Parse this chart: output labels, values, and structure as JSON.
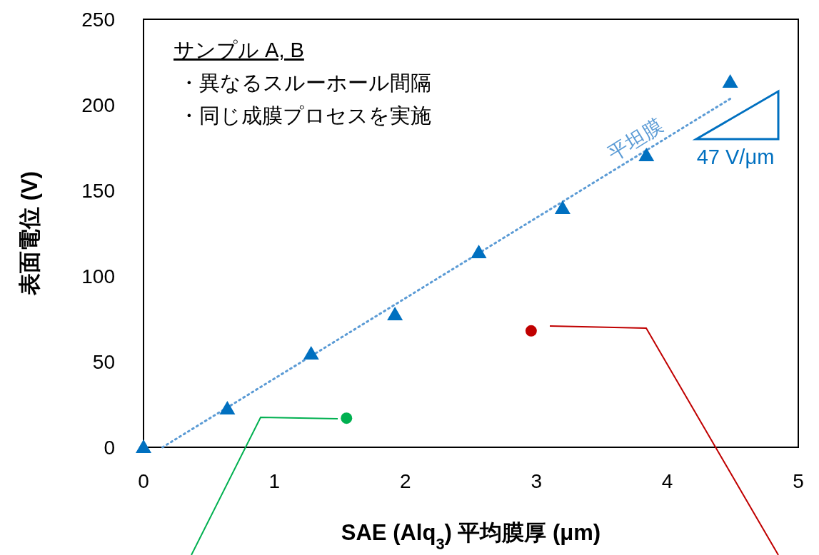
{
  "chart_data": {
    "type": "scatter",
    "xlabel": "SAE (Alq$_{3}$) 平均膜厚 (μm)",
    "ylabel": "表面電位 (V)",
    "xlim": [
      0,
      5
    ],
    "xticks": [
      0,
      1,
      2,
      3,
      4,
      5
    ],
    "ylim": [
      0,
      250
    ],
    "yticks": [
      0,
      50,
      100,
      150,
      200,
      250
    ],
    "grid": false,
    "legend": false,
    "annotations": [
      "サンプル A, B",
      "・異なるスルーホール間隔",
      "・同じ成膜プロセスを実施",
      "47 V/μm"
    ],
    "series": [
      {
        "type": "line",
        "name": "平坦膜",
        "color": "#5b9bd5",
        "line_style": "dotted",
        "marker": "none",
        "x": [
          0.145,
          4.49
        ],
        "values": [
          0,
          204
        ]
      },
      {
        "color": "#0070c0",
        "marker": "triangle",
        "x": [
          0,
          0.64,
          1.28,
          1.92,
          2.56,
          3.2,
          3.84,
          4.48
        ],
        "values": [
          0,
          22.5,
          54.6,
          77.5,
          113.8,
          139.6,
          170.4,
          213.3
        ]
      },
      {
        "color": "#00b050",
        "marker": "circle",
        "x": [
          1.55
        ],
        "values": [
          17
        ]
      },
      {
        "color": "#c00000",
        "marker": "circle",
        "x": [
          2.96
        ],
        "values": [
          68
        ]
      }
    ]
  }
}
